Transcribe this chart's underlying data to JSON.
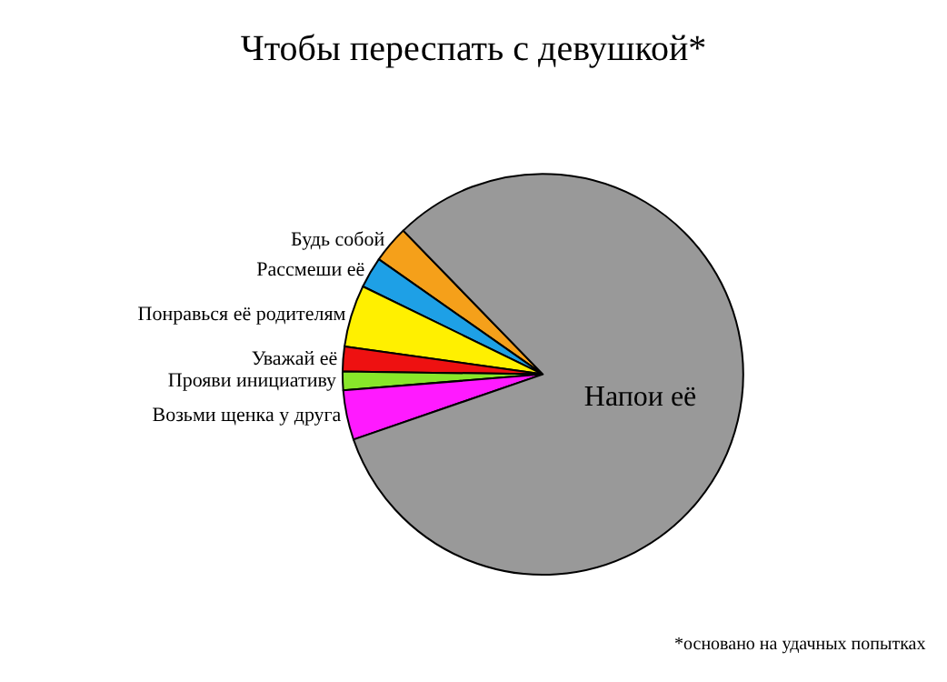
{
  "chart_data": {
    "type": "pie",
    "title": "Чтобы переспать с девушкой*",
    "categories": [
      "Будь собой",
      "Рассмеши её",
      "Понравься её родителям",
      "Уважай её",
      "Прояви инициативу",
      "Возьми щенка у друга",
      "Напои её"
    ],
    "values": [
      3,
      2.5,
      5,
      2,
      1.5,
      4,
      82
    ],
    "colors": [
      "#f5a01a",
      "#1ea0e6",
      "#fff000",
      "#ee1111",
      "#88e62a",
      "#ff1aff",
      "#999999"
    ],
    "annotations": [
      "*основано на удачных попытках"
    ],
    "legend": false
  }
}
